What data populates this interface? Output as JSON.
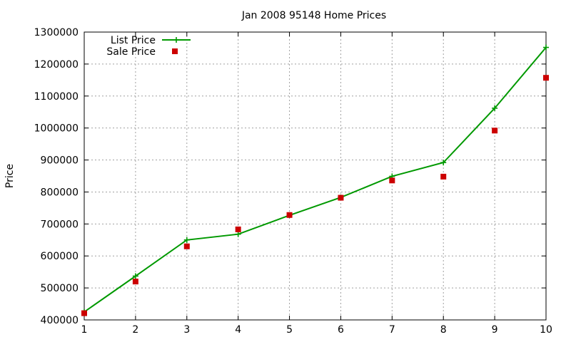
{
  "chart_data": {
    "type": "line",
    "title": "Jan 2008 95148 Home Prices",
    "xlabel": "",
    "ylabel": "Price",
    "xlim": [
      1,
      10
    ],
    "ylim": [
      400000,
      1300000
    ],
    "xticks": [
      1,
      2,
      3,
      4,
      5,
      6,
      7,
      8,
      9,
      10
    ],
    "yticks": [
      400000,
      500000,
      600000,
      700000,
      800000,
      900000,
      1000000,
      1100000,
      1200000,
      1300000
    ],
    "grid": true,
    "legend_position": "top-left",
    "x": [
      1,
      2,
      3,
      4,
      5,
      6,
      7,
      8,
      9,
      10
    ],
    "series": [
      {
        "name": "List Price",
        "style": "line-with-plus-markers",
        "color": "#009900",
        "values": [
          425000,
          537000,
          650000,
          668000,
          727000,
          783000,
          849000,
          892000,
          1062000,
          1252000
        ]
      },
      {
        "name": "Sale Price",
        "style": "square-markers",
        "color": "#cc0000",
        "values": [
          421000,
          520000,
          630000,
          683000,
          728000,
          782000,
          836000,
          848000,
          992000,
          1157000
        ]
      }
    ]
  }
}
